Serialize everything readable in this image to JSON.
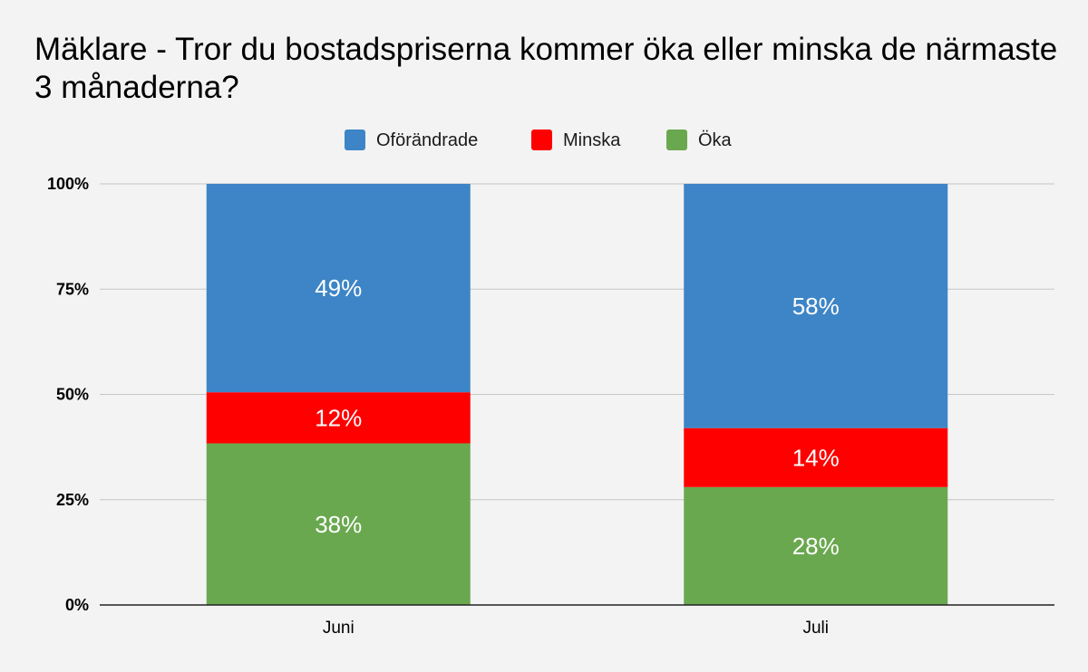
{
  "chart_data": {
    "type": "bar",
    "stacked": true,
    "title": "Mäklare - Tror du bostadspriserna kommer öka eller minska de närmaste 3 månaderna?",
    "categories": [
      "Juni",
      "Juli"
    ],
    "series": [
      {
        "name": "Öka",
        "values": [
          38,
          28
        ],
        "labels": [
          "38%",
          "28%"
        ],
        "color": "#6aa84f"
      },
      {
        "name": "Minska",
        "values": [
          12,
          14
        ],
        "labels": [
          "12%",
          "14%"
        ],
        "color": "#ff0000"
      },
      {
        "name": "Oföränd­rade",
        "values": [
          49,
          58
        ],
        "labels": [
          "49%",
          "58%"
        ],
        "color": "#3d85c6"
      }
    ],
    "legend_order": [
      "Oföränd­rade",
      "Minska",
      "Öka"
    ],
    "legend_position": "top",
    "y_ticks": [
      "0%",
      "25%",
      "50%",
      "75%",
      "100%"
    ],
    "ylim": [
      0,
      100
    ],
    "grid": true,
    "normalized_to_100_percent": true
  }
}
